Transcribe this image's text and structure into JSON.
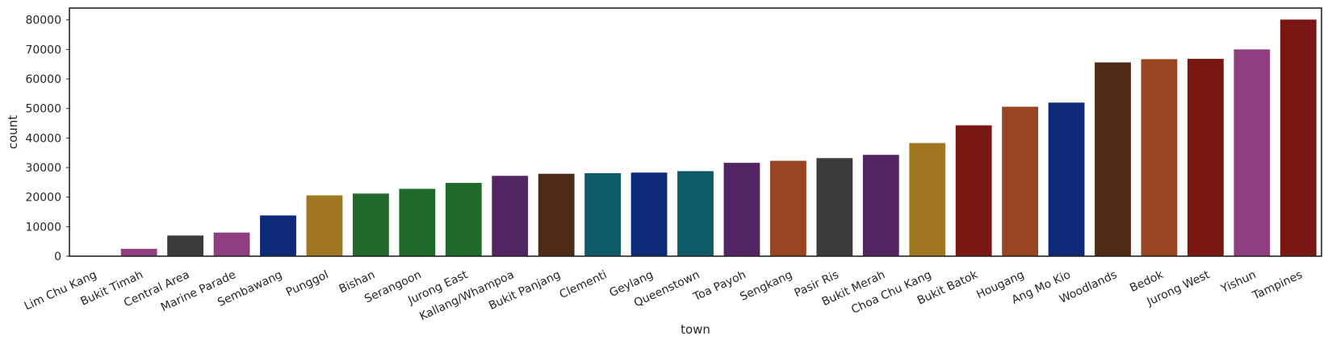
{
  "chart_data": {
    "type": "bar",
    "xlabel": "town",
    "ylabel": "count",
    "ylim": [
      0,
      84000
    ],
    "yticks": [
      0,
      10000,
      20000,
      30000,
      40000,
      50000,
      60000,
      70000,
      80000
    ],
    "grid": false,
    "legend": "none",
    "categories": [
      "Lim Chu Kang",
      "Bukit Timah",
      "Central Area",
      "Marine Parade",
      "Sembawang",
      "Punggol",
      "Bishan",
      "Serangoon",
      "Jurong East",
      "Kallang/Whampoa",
      "Bukit Panjang",
      "Clementi",
      "Geylang",
      "Queenstown",
      "Toa Payoh",
      "Sengkang",
      "Pasir Ris",
      "Bukit Merah",
      "Choa Chu Kang",
      "Bukit Batok",
      "Hougang",
      "Ang Mo Kio",
      "Woodlands",
      "Bedok",
      "Jurong West",
      "Yishun",
      "Tampines"
    ],
    "values": [
      100,
      2500,
      7000,
      8000,
      13800,
      20600,
      21200,
      22800,
      24800,
      27200,
      27900,
      28100,
      28300,
      28800,
      31600,
      32300,
      33200,
      34300,
      38300,
      44300,
      50600,
      52000,
      65600,
      66700,
      66800,
      70000,
      80100
    ],
    "colors": [
      "#0d2a78",
      "#8f3f7f",
      "#3b3b3b",
      "#8f3f7f",
      "#0d2a78",
      "#a07822",
      "#206b2b",
      "#206b2b",
      "#206b2b",
      "#532462",
      "#4d2b14",
      "#0e5a69",
      "#0d2a78",
      "#0e5a69",
      "#532462",
      "#99451f",
      "#3b3b3b",
      "#532462",
      "#a07822",
      "#7a1712",
      "#99451f",
      "#0d2a78",
      "#4d2b14",
      "#99451f",
      "#7a1712",
      "#8f3f7f",
      "#7a1712"
    ]
  }
}
